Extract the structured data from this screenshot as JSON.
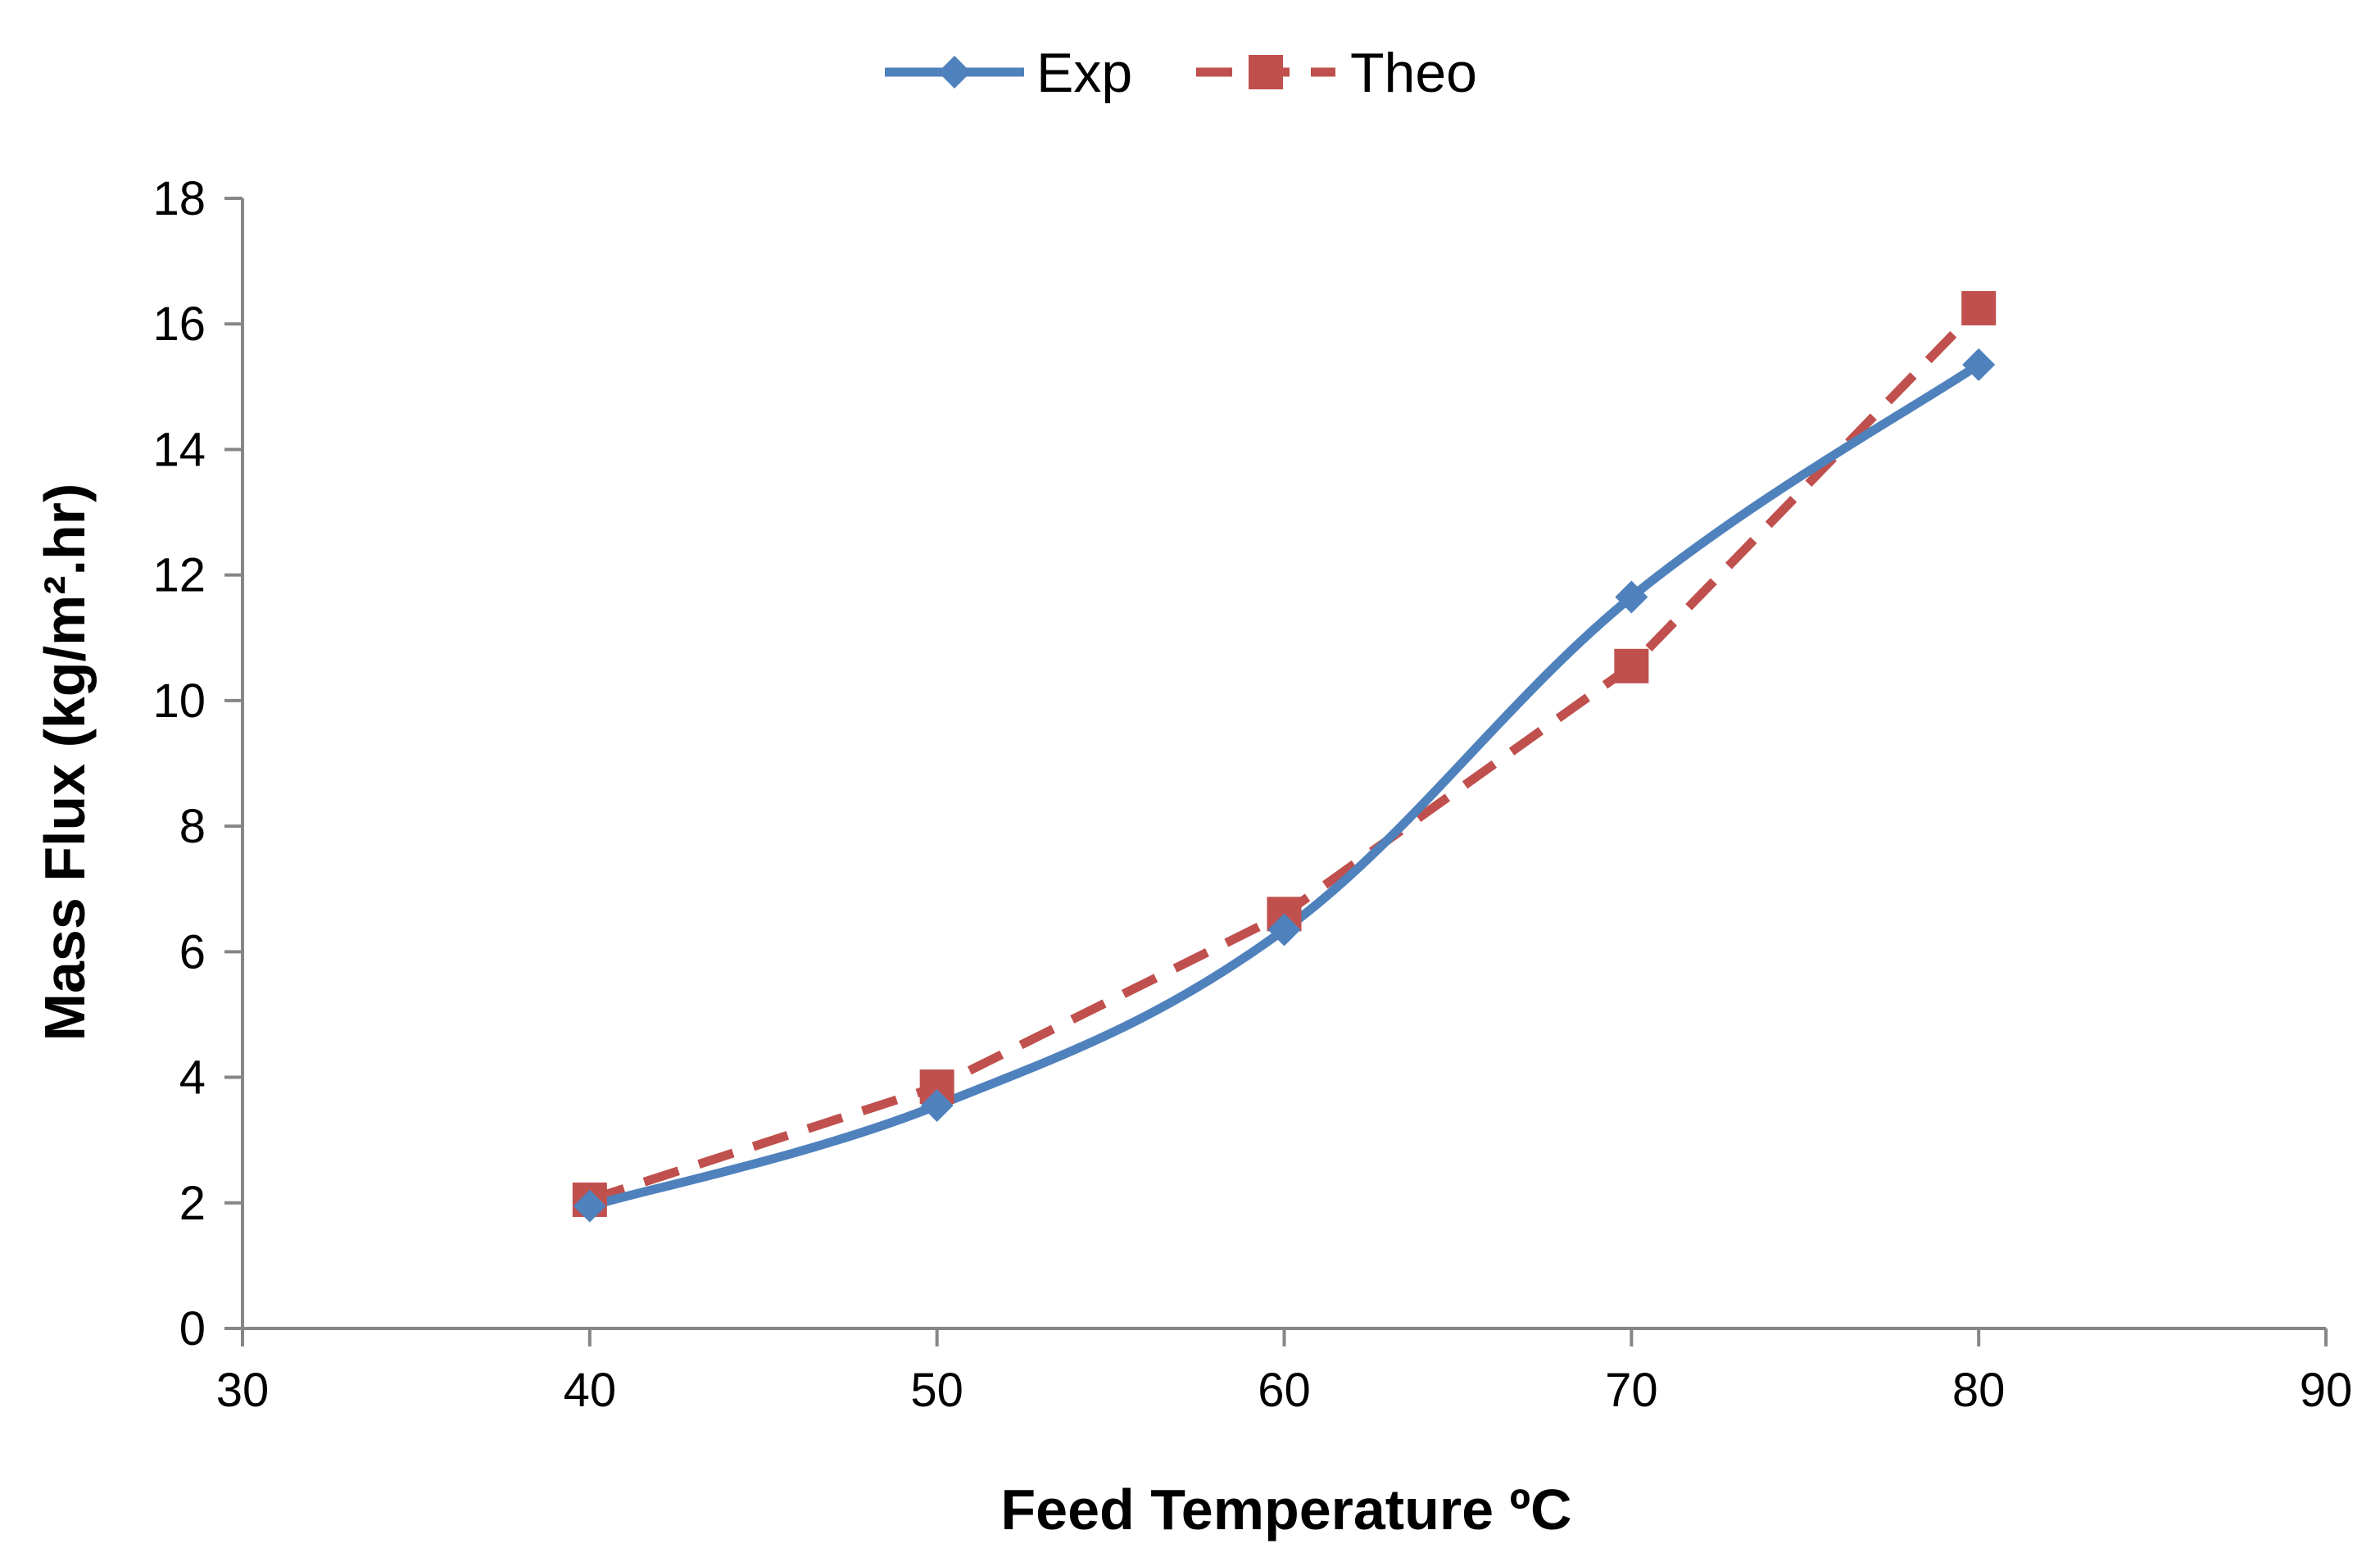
{
  "chart_data": {
    "type": "line",
    "title": "",
    "xlabel": "Feed Temperature ºC",
    "ylabel": "Mass Flux (kg/m².hr)",
    "xlim": [
      30,
      90
    ],
    "ylim": [
      0,
      18
    ],
    "xticks": [
      30,
      40,
      50,
      60,
      70,
      80,
      90
    ],
    "yticks": [
      0,
      2,
      4,
      6,
      8,
      10,
      12,
      14,
      16,
      18
    ],
    "legend_position": "top-center",
    "grid": false,
    "series": [
      {
        "name": "Exp",
        "color": "#4f81bd",
        "line_style": "solid",
        "smooth": true,
        "marker": "diamond",
        "x": [
          40,
          50,
          60,
          70,
          80
        ],
        "y": [
          1.95,
          3.55,
          6.35,
          11.65,
          15.35
        ]
      },
      {
        "name": "Theo",
        "color": "#c0504d",
        "line_style": "dashed",
        "smooth": false,
        "marker": "square",
        "x": [
          40,
          50,
          60,
          70,
          80
        ],
        "y": [
          2.05,
          3.85,
          6.6,
          10.55,
          16.25
        ]
      }
    ]
  }
}
